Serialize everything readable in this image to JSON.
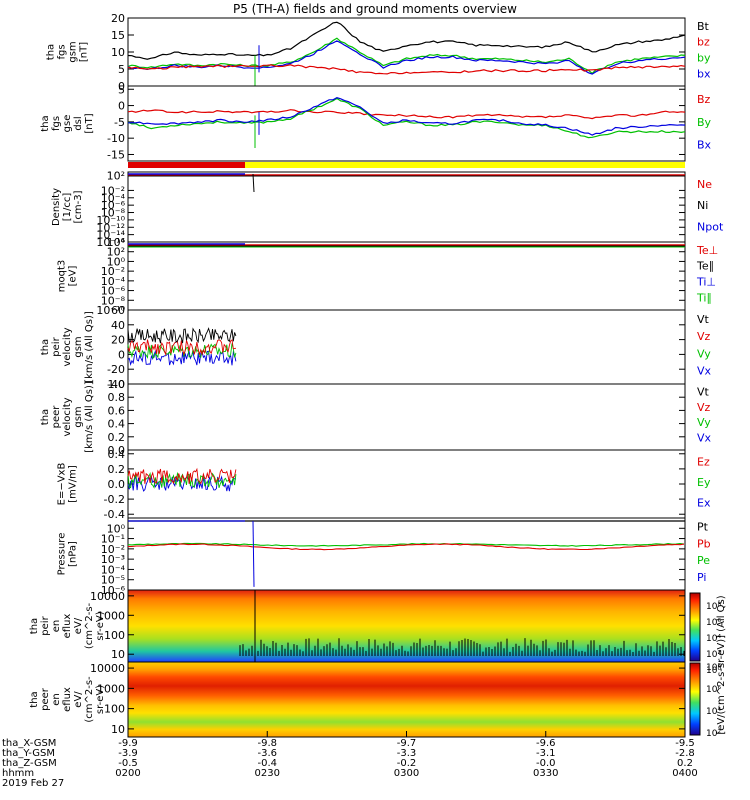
{
  "title": "P5 (TH-A) fields and ground moments overview",
  "colors": {
    "black": "#000000",
    "red": "#e00000",
    "green": "#00c000",
    "blue": "#0000e0",
    "yellow": "#ffff00"
  },
  "chart_data": [
    {
      "type": "line",
      "ylabel": [
        "tha",
        "fgs",
        "gsm",
        "[nT]"
      ],
      "ylim": [
        0,
        20
      ],
      "yticks": [
        "20",
        "15",
        "10",
        "5",
        "0"
      ],
      "yvals": [
        20,
        15,
        10,
        5,
        0
      ],
      "legend": [
        {
          "label": "Bt",
          "color": "#000000"
        },
        {
          "label": "bz",
          "color": "#e00000"
        },
        {
          "label": "by",
          "color": "#00c000"
        },
        {
          "label": "bx",
          "color": "#0000e0"
        }
      ],
      "series": [
        {
          "name": "Bt",
          "color": "#000000",
          "x": [
            0,
            5,
            10,
            15,
            20,
            25,
            30,
            35,
            40,
            45,
            50,
            55,
            60,
            65,
            70,
            75,
            80,
            85,
            90,
            95,
            100,
            105,
            110,
            115,
            120
          ],
          "values": [
            9,
            8,
            10,
            9,
            9.5,
            9,
            9,
            11,
            15,
            19,
            13,
            10,
            12,
            13,
            13,
            12,
            12,
            11.5,
            11.5,
            13,
            10,
            12,
            13,
            13.5,
            15
          ]
        },
        {
          "name": "by",
          "color": "#00c000",
          "x": [
            0,
            5,
            10,
            15,
            20,
            25,
            30,
            35,
            40,
            45,
            50,
            55,
            60,
            65,
            70,
            75,
            80,
            85,
            90,
            95,
            100,
            105,
            110,
            115,
            120
          ],
          "values": [
            6,
            5.5,
            6.5,
            6,
            6.5,
            6,
            6,
            7,
            10,
            14,
            10,
            6,
            8,
            9,
            9,
            8,
            8,
            7.5,
            7,
            8,
            4,
            7,
            8,
            8.5,
            9
          ]
        },
        {
          "name": "bx",
          "color": "#0000e0",
          "x": [
            0,
            5,
            10,
            15,
            20,
            25,
            30,
            35,
            40,
            45,
            50,
            55,
            60,
            65,
            70,
            75,
            80,
            85,
            90,
            95,
            100,
            105,
            110,
            115,
            120
          ],
          "values": [
            5.5,
            5,
            6,
            5.5,
            6,
            5.5,
            5.5,
            6.5,
            9.5,
            13.5,
            9.5,
            5.5,
            7.5,
            8.5,
            8.5,
            7.5,
            7.5,
            7,
            6.5,
            7.5,
            3.5,
            6.5,
            7.5,
            8,
            8.5
          ]
        },
        {
          "name": "bz",
          "color": "#e00000",
          "x": [
            0,
            5,
            10,
            15,
            20,
            25,
            30,
            35,
            40,
            45,
            50,
            55,
            60,
            65,
            70,
            75,
            80,
            85,
            90,
            95,
            100,
            105,
            110,
            115,
            120
          ],
          "values": [
            5.5,
            5,
            5.5,
            5.8,
            5.8,
            5.8,
            6,
            6,
            5.5,
            5,
            4,
            3.5,
            4,
            4,
            4,
            4.5,
            4.5,
            4.5,
            4.5,
            5,
            4.5,
            5.5,
            5.5,
            5.8,
            5.8
          ]
        }
      ]
    },
    {
      "type": "line",
      "ylabel": [
        "tha",
        "fgs",
        "gse",
        "dsl",
        "[nT]"
      ],
      "ylim": [
        -17,
        6
      ],
      "yticks": [
        "5",
        "0",
        "-5",
        "-10",
        "-15"
      ],
      "yvals": [
        5,
        0,
        -5,
        -10,
        -15
      ],
      "legend": [
        {
          "label": "Bz",
          "color": "#e00000"
        },
        {
          "label": "By",
          "color": "#00c000"
        },
        {
          "label": "Bx",
          "color": "#0000e0"
        }
      ],
      "series": [
        {
          "name": "Bz",
          "color": "#e00000",
          "x": [
            0,
            5,
            10,
            15,
            20,
            25,
            30,
            35,
            40,
            45,
            50,
            55,
            60,
            65,
            70,
            75,
            80,
            85,
            90,
            95,
            100,
            105,
            110,
            115,
            120
          ],
          "values": [
            -2,
            -1.5,
            -2,
            -2,
            -1.8,
            -2,
            -2,
            -1.5,
            -2,
            -2,
            -2.5,
            -3,
            -3,
            -3.5,
            -3.5,
            -3,
            -3,
            -3.5,
            -3.5,
            -3,
            -4,
            -3,
            -3,
            -2,
            -2
          ]
        },
        {
          "name": "By",
          "color": "#00c000",
          "x": [
            0,
            5,
            10,
            15,
            20,
            25,
            30,
            35,
            40,
            45,
            50,
            55,
            60,
            65,
            70,
            75,
            80,
            85,
            90,
            95,
            100,
            105,
            110,
            115,
            120
          ],
          "values": [
            -5,
            -7,
            -6,
            -5.5,
            -5,
            -5.5,
            -5,
            -4,
            -1,
            2,
            -1,
            -6,
            -5,
            -6,
            -6,
            -5,
            -5,
            -6,
            -6,
            -8,
            -10,
            -8,
            -8,
            -8,
            -8
          ]
        },
        {
          "name": "Bx",
          "color": "#0000e0",
          "x": [
            0,
            5,
            10,
            15,
            20,
            25,
            30,
            35,
            40,
            45,
            50,
            55,
            60,
            65,
            70,
            75,
            80,
            85,
            90,
            95,
            100,
            105,
            110,
            115,
            120
          ],
          "values": [
            -5,
            -5.5,
            -5.5,
            -5,
            -4.5,
            -5,
            -4.5,
            -3.5,
            -0.5,
            2.5,
            -0.5,
            -5.5,
            -4.5,
            -5.5,
            -5.5,
            -4.5,
            -4.5,
            -5.5,
            -6,
            -7,
            -9,
            -7,
            -6.5,
            -6,
            -6
          ]
        }
      ]
    },
    {
      "type": "line",
      "ylabel": [
        "Density",
        "[1/cc]",
        "[cm-3]"
      ],
      "ylog": true,
      "ylim": [
        -16,
        3
      ],
      "yticks": [
        "10²",
        "10⁻²",
        "10⁻⁴",
        "10⁻⁶",
        "10⁻⁸",
        "10⁻¹⁰",
        "10⁻¹²",
        "10⁻¹⁴",
        "10⁻¹⁶"
      ],
      "yvals": [
        2,
        -2,
        -4,
        -6,
        -8,
        -10,
        -12,
        -14,
        -16
      ],
      "legend": [
        {
          "label": "Ne",
          "color": "#e00000"
        },
        {
          "label": "Ni",
          "color": "#000000"
        },
        {
          "label": "Npot",
          "color": "#0000e0"
        }
      ]
    },
    {
      "type": "line",
      "ylabel": [
        "moqt3",
        "[eV]"
      ],
      "ylog": true,
      "ylim": [
        -10,
        4
      ],
      "yticks": [
        "10⁴",
        "10²",
        "10⁰",
        "10⁻²",
        "10⁻⁴",
        "10⁻⁶",
        "10⁻⁸",
        "10⁻¹⁰"
      ],
      "yvals": [
        4,
        2,
        0,
        -2,
        -4,
        -6,
        -8,
        -10
      ],
      "legend": [
        {
          "label": "Te⊥",
          "color": "#e00000"
        },
        {
          "label": "Te∥",
          "color": "#000000"
        },
        {
          "label": "Ti⊥",
          "color": "#0000e0"
        },
        {
          "label": "Ti∥",
          "color": "#00c000"
        }
      ]
    },
    {
      "type": "line",
      "ylabel": [
        "tha",
        "peir",
        "velocity",
        "gsm",
        "[km/s (All Qs)]"
      ],
      "ylim": [
        -40,
        60
      ],
      "yticks": [
        "60",
        "40",
        "20",
        "0",
        "-20",
        "-40"
      ],
      "yvals": [
        60,
        40,
        20,
        0,
        -20,
        -40
      ],
      "legend": [
        {
          "label": "Vt",
          "color": "#000000"
        },
        {
          "label": "Vz",
          "color": "#e00000"
        },
        {
          "label": "Vy",
          "color": "#00c000"
        },
        {
          "label": "Vx",
          "color": "#0000e0"
        }
      ]
    },
    {
      "type": "line",
      "ylabel": [
        "tha",
        "peer",
        "velocity",
        "gsm",
        "[km/s (All Qs)]"
      ],
      "ylim": [
        0,
        1
      ],
      "yticks": [
        "1.0",
        "0.8",
        "0.6",
        "0.4",
        "0.2",
        "0.0"
      ],
      "yvals": [
        1,
        0.8,
        0.6,
        0.4,
        0.2,
        0
      ],
      "legend": [
        {
          "label": "Vt",
          "color": "#000000"
        },
        {
          "label": "Vz",
          "color": "#e00000"
        },
        {
          "label": "Vy",
          "color": "#00c000"
        },
        {
          "label": "Vx",
          "color": "#0000e0"
        }
      ]
    },
    {
      "type": "line",
      "ylabel": [
        "E=−VxB",
        "[mV/m]"
      ],
      "ylim": [
        -0.45,
        0.45
      ],
      "yticks": [
        "0.4",
        "0.2",
        "0.0",
        "-0.2",
        "-0.4"
      ],
      "yvals": [
        0.4,
        0.2,
        0,
        -0.2,
        -0.4
      ],
      "legend": [
        {
          "label": "Ez",
          "color": "#e00000"
        },
        {
          "label": "Ey",
          "color": "#00c000"
        },
        {
          "label": "Ex",
          "color": "#0000e0"
        }
      ]
    },
    {
      "type": "line",
      "ylabel": [
        "Pressure",
        "[nPa]"
      ],
      "ylog": true,
      "ylim": [
        -6,
        1
      ],
      "yticks": [
        "10⁰",
        "10⁻¹",
        "10⁻²",
        "10⁻³",
        "10⁻⁴",
        "10⁻⁵",
        "10⁻⁶"
      ],
      "yvals": [
        0,
        -1,
        -2,
        -3,
        -4,
        -5,
        -6
      ],
      "legend": [
        {
          "label": "Pt",
          "color": "#000000"
        },
        {
          "label": "Pb",
          "color": "#e00000"
        },
        {
          "label": "Pe",
          "color": "#00c000"
        },
        {
          "label": "Pi",
          "color": "#0000e0"
        }
      ]
    },
    {
      "type": "heatmap",
      "ylabel": [
        "tha",
        "peir",
        "en",
        "eflux",
        "eV/",
        "(cm^2-s-",
        "sr-eV)"
      ],
      "ylog": true,
      "yticks": [
        "10000",
        "1000",
        "100",
        "10"
      ],
      "yvals": [
        4,
        3,
        2,
        1
      ]
    },
    {
      "type": "heatmap",
      "ylabel": [
        "tha",
        "peer",
        "en",
        "eflux",
        "eV/",
        "(cm^2-s-",
        "sr-eV)"
      ],
      "ylog": true,
      "yticks": [
        "10000",
        "1000",
        "100",
        "10"
      ],
      "yvals": [
        4,
        3,
        2,
        1
      ]
    }
  ],
  "colorbar": {
    "label": "[eV/(cm^2-s-sr-eV)] (All Qs)",
    "ticks_upper": [
      "10⁸",
      "10⁶",
      "10⁴",
      "10²",
      "10⁰"
    ],
    "ticks_lower": [
      "10⁸",
      "10⁶",
      "10⁴",
      "10²"
    ]
  },
  "xaxis": {
    "ticks": [
      0,
      30,
      60,
      90,
      120
    ],
    "rows": [
      {
        "label": "tha_X-GSM",
        "values": [
          "-9.9",
          "-9.8",
          "-9.7",
          "-9.6",
          "-9.5"
        ]
      },
      {
        "label": "tha_Y-GSM",
        "values": [
          "-3.9",
          "-3.6",
          "-3.3",
          "-3.1",
          "-2.8"
        ]
      },
      {
        "label": "tha_Z-GSM",
        "values": [
          "-0.5",
          "-0.4",
          "-0.2",
          "-0.0",
          "0.2"
        ]
      },
      {
        "label": "hhmm",
        "values": [
          "0200",
          "0230",
          "0300",
          "0330",
          "0400"
        ]
      }
    ],
    "date": "2019 Feb 27"
  }
}
